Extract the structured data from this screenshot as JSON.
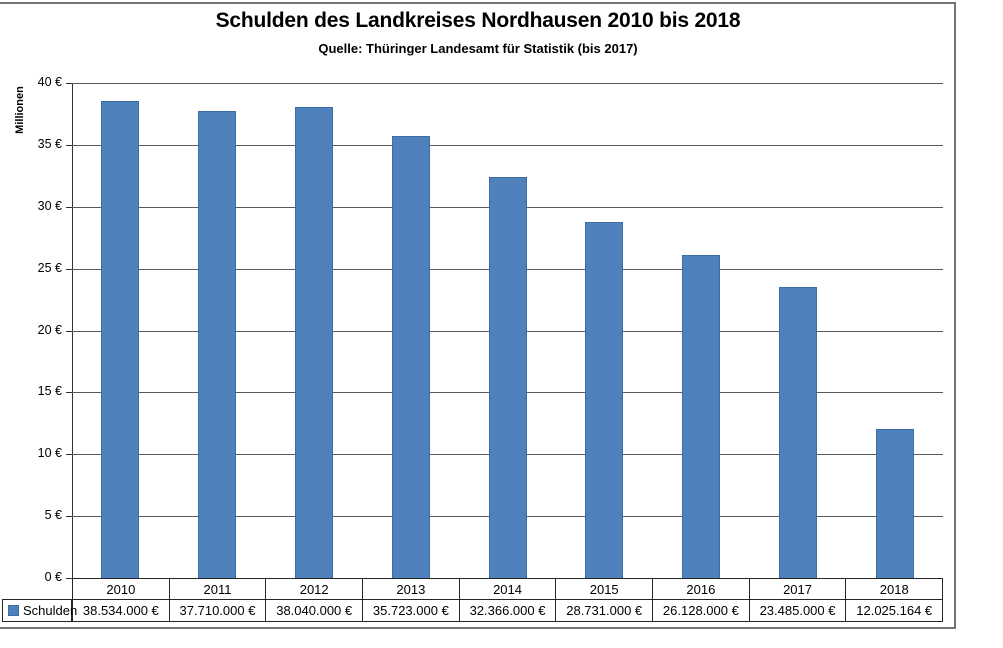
{
  "chart_data": {
    "type": "bar",
    "title": "Schulden des Landkreises Nordhausen 2010 bis 2018",
    "subtitle": "Quelle: Thüringer Landesamt für Statistik (bis 2017)",
    "ylabel": "Millionen",
    "categories": [
      "2010",
      "2011",
      "2012",
      "2013",
      "2014",
      "2015",
      "2016",
      "2017",
      "2018"
    ],
    "series": [
      {
        "name": "Schulden",
        "values_eur": [
          38534000,
          37710000,
          38040000,
          35723000,
          32366000,
          28731000,
          26128000,
          23485000,
          12025164
        ],
        "values_label": [
          "38.534.000 €",
          "37.710.000 €",
          "38.040.000 €",
          "35.723.000 €",
          "32.366.000 €",
          "28.731.000 €",
          "26.128.000 €",
          "23.485.000 €",
          "12.025.164 €"
        ]
      }
    ],
    "ylim_millions": [
      0,
      40
    ],
    "ytick_step_millions": 5,
    "ytick_labels": [
      "0 €",
      "5 €",
      "10 €",
      "15 €",
      "20 €",
      "25 €",
      "30 €",
      "35 €",
      "40 €"
    ],
    "grid": true,
    "legend_position": "bottom-left-table-cell"
  },
  "colors": {
    "bar_fill": "#4F81BD",
    "bar_border": "#3C6DA3",
    "gridline": "#595959",
    "axis": "#333333",
    "table_border": "#262626",
    "frame_border": "#747474",
    "text": "#000000",
    "background": "#FFFFFF"
  }
}
